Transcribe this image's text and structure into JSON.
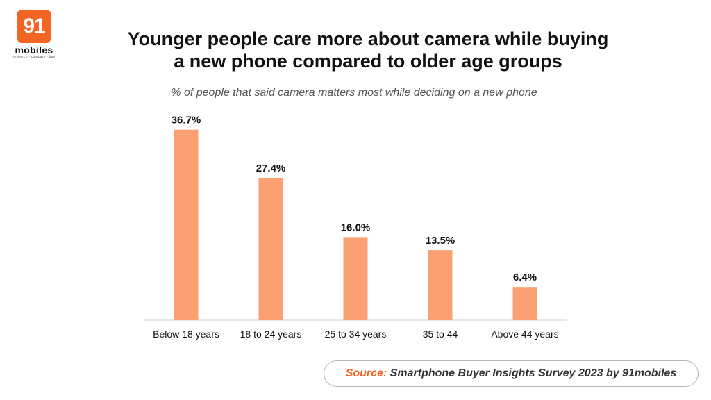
{
  "brand": {
    "logo_number": "91",
    "logo_word": "mobiles",
    "logo_tagline": "research · compare · buy",
    "accent_color": "#f26522"
  },
  "title_line1": "Younger people care more about camera while buying",
  "title_line2": "a new phone compared to older age groups",
  "subtitle": "% of people that said camera matters most while deciding on a new phone",
  "source": {
    "prefix": "Source:",
    "text": "Smartphone Buyer Insights Survey 2023 by 91mobiles"
  },
  "chart_data": {
    "type": "bar",
    "title": "Younger people care more about camera while buying a new phone compared to older age groups",
    "subtitle": "% of people that said camera matters most while deciding on a new phone",
    "categories": [
      "Below 18 years",
      "18 to 24 years",
      "25 to 34 years",
      "35 to 44",
      "Above 44 years"
    ],
    "values": [
      36.7,
      27.4,
      16.0,
      13.5,
      6.4
    ],
    "value_labels": [
      "36.7%",
      "27.4%",
      "16.0%",
      "13.5%",
      "6.4%"
    ],
    "xlabel": "",
    "ylabel": "",
    "ylim": [
      0,
      40
    ],
    "grid": false,
    "bar_color": "#fba073",
    "axis_color": "#cccccc"
  }
}
